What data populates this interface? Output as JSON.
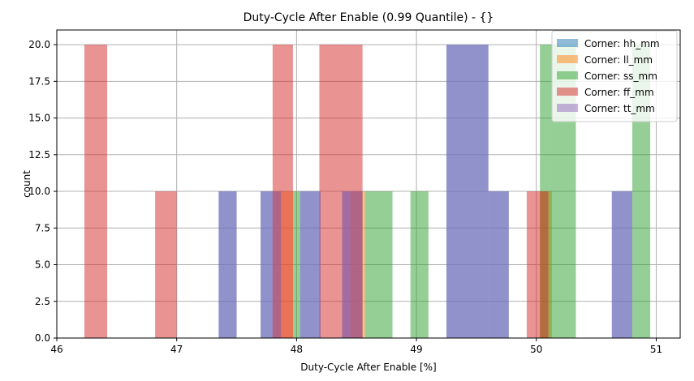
{
  "chart_data": {
    "type": "bar",
    "title": "Duty-Cycle After Enable (0.99 Quantile) - {}",
    "xlabel": "Duty-Cycle After Enable [%]",
    "ylabel": "count",
    "xlim": [
      46.0,
      51.2
    ],
    "ylim": [
      0,
      21
    ],
    "xticks": [
      46,
      47,
      48,
      49,
      50,
      51
    ],
    "yticks": [
      0.0,
      2.5,
      5.0,
      7.5,
      10.0,
      12.5,
      15.0,
      17.5,
      20.0
    ],
    "grid": true,
    "legend_position": "top-right",
    "series": [
      {
        "name": "Corner: hh_mm",
        "color": "#1f77b4",
        "bins": [
          [
            47.35,
            47.5,
            10
          ],
          [
            47.7,
            47.87,
            10
          ],
          [
            48.03,
            48.2,
            10
          ],
          [
            48.38,
            48.55,
            10
          ],
          [
            49.25,
            49.6,
            20
          ],
          [
            49.6,
            49.77,
            10
          ],
          [
            50.63,
            50.8,
            10
          ]
        ]
      },
      {
        "name": "Corner: ll_mm",
        "color": "#ff7f0e",
        "bins": [
          [
            47.8,
            47.97,
            10
          ],
          [
            48.45,
            48.57,
            10
          ],
          [
            50.03,
            50.13,
            10
          ]
        ]
      },
      {
        "name": "Corner: ss_mm",
        "color": "#2ca02c",
        "bins": [
          [
            47.97,
            48.03,
            10
          ],
          [
            48.57,
            48.8,
            10
          ],
          [
            48.95,
            49.1,
            10
          ],
          [
            50.03,
            50.1,
            20
          ],
          [
            50.1,
            50.33,
            20
          ],
          [
            50.8,
            50.95,
            20
          ]
        ]
      },
      {
        "name": "Corner: ff_mm",
        "color": "#d62728",
        "bins": [
          [
            46.23,
            46.42,
            20
          ],
          [
            46.82,
            47.0,
            10
          ],
          [
            47.8,
            47.97,
            20
          ],
          [
            48.19,
            48.55,
            20
          ],
          [
            49.92,
            50.1,
            10
          ]
        ]
      },
      {
        "name": "Corner: tt_mm",
        "color": "#9467bd",
        "bins": [
          [
            47.35,
            47.5,
            10
          ],
          [
            47.7,
            47.87,
            10
          ],
          [
            48.03,
            48.2,
            10
          ],
          [
            48.38,
            48.55,
            10
          ],
          [
            49.25,
            49.6,
            20
          ],
          [
            49.6,
            49.77,
            10
          ],
          [
            50.63,
            50.8,
            10
          ]
        ]
      }
    ]
  }
}
